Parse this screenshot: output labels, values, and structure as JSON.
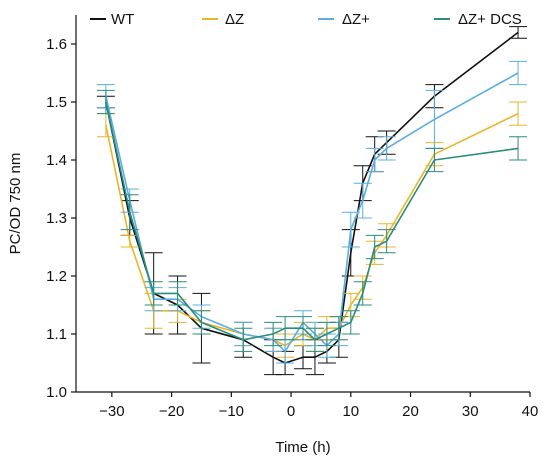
{
  "chart_data": {
    "type": "line",
    "title": "",
    "xlabel": "Time (h)",
    "ylabel": "PC/OD 750 nm",
    "xlim": [
      -36,
      40
    ],
    "ylim": [
      1.0,
      1.65
    ],
    "x_ticks": [
      -30,
      -20,
      -10,
      0,
      10,
      20,
      30,
      40
    ],
    "x_tick_labels": [
      "−30",
      "−20",
      "−10",
      "0",
      "10",
      "20",
      "30",
      "40"
    ],
    "y_ticks": [
      1.0,
      1.1,
      1.2,
      1.3,
      1.4,
      1.5,
      1.6
    ],
    "y_tick_labels": [
      "1.0",
      "1.1",
      "1.2",
      "1.3",
      "1.4",
      "1.5",
      "1.6"
    ],
    "grid": false,
    "legend_position": "top",
    "error_bars": true,
    "series": [
      {
        "name": "WT",
        "color": "#111111",
        "x": [
          -31,
          -27,
          -23,
          -19,
          -15,
          -8,
          -3,
          -1,
          2,
          4,
          6,
          8,
          10,
          12,
          14,
          16,
          24,
          38
        ],
        "y": [
          1.5,
          1.3,
          1.17,
          1.15,
          1.11,
          1.09,
          1.06,
          1.05,
          1.06,
          1.06,
          1.07,
          1.09,
          1.24,
          1.36,
          1.41,
          1.43,
          1.51,
          1.62
        ],
        "err": [
          0.01,
          0.03,
          0.07,
          0.05,
          0.06,
          0.03,
          0.03,
          0.02,
          0.02,
          0.03,
          0.02,
          0.03,
          0.04,
          0.03,
          0.03,
          0.02,
          0.02,
          0.01
        ]
      },
      {
        "name": "ΔZ",
        "color": "#E8B62B",
        "x": [
          -31,
          -27,
          -23,
          -19,
          -15,
          -8,
          -3,
          -1,
          2,
          4,
          6,
          8,
          10,
          12,
          14,
          16,
          24,
          38
        ],
        "y": [
          1.46,
          1.26,
          1.14,
          1.14,
          1.12,
          1.1,
          1.09,
          1.08,
          1.1,
          1.09,
          1.11,
          1.11,
          1.15,
          1.18,
          1.24,
          1.27,
          1.41,
          1.48
        ],
        "err": [
          0.02,
          0.01,
          0.03,
          0.02,
          0.02,
          0.02,
          0.02,
          0.02,
          0.02,
          0.02,
          0.02,
          0.02,
          0.02,
          0.02,
          0.02,
          0.02,
          0.02,
          0.02
        ]
      },
      {
        "name": "ΔZ+",
        "color": "#5BAEE0",
        "x": [
          -31,
          -27,
          -23,
          -19,
          -15,
          -8,
          -3,
          -1,
          2,
          4,
          6,
          8,
          10,
          12,
          14,
          16,
          24,
          38
        ],
        "y": [
          1.51,
          1.33,
          1.16,
          1.16,
          1.13,
          1.1,
          1.09,
          1.07,
          1.12,
          1.1,
          1.08,
          1.1,
          1.28,
          1.33,
          1.4,
          1.42,
          1.47,
          1.55
        ],
        "err": [
          0.02,
          0.02,
          0.02,
          0.02,
          0.02,
          0.02,
          0.02,
          0.02,
          0.02,
          0.02,
          0.02,
          0.02,
          0.03,
          0.03,
          0.02,
          0.02,
          0.05,
          0.02
        ]
      },
      {
        "name": "ΔZ+ DCS",
        "color": "#2B8C7E",
        "x": [
          -31,
          -27,
          -23,
          -19,
          -15,
          -8,
          -3,
          -1,
          2,
          4,
          6,
          8,
          10,
          12,
          14,
          16,
          24,
          38
        ],
        "y": [
          1.5,
          1.31,
          1.17,
          1.17,
          1.12,
          1.09,
          1.1,
          1.11,
          1.11,
          1.09,
          1.1,
          1.11,
          1.12,
          1.17,
          1.25,
          1.26,
          1.4,
          1.42
        ],
        "err": [
          0.02,
          0.03,
          0.02,
          0.02,
          0.02,
          0.02,
          0.02,
          0.02,
          0.02,
          0.02,
          0.02,
          0.02,
          0.02,
          0.02,
          0.02,
          0.02,
          0.02,
          0.02
        ]
      }
    ]
  }
}
